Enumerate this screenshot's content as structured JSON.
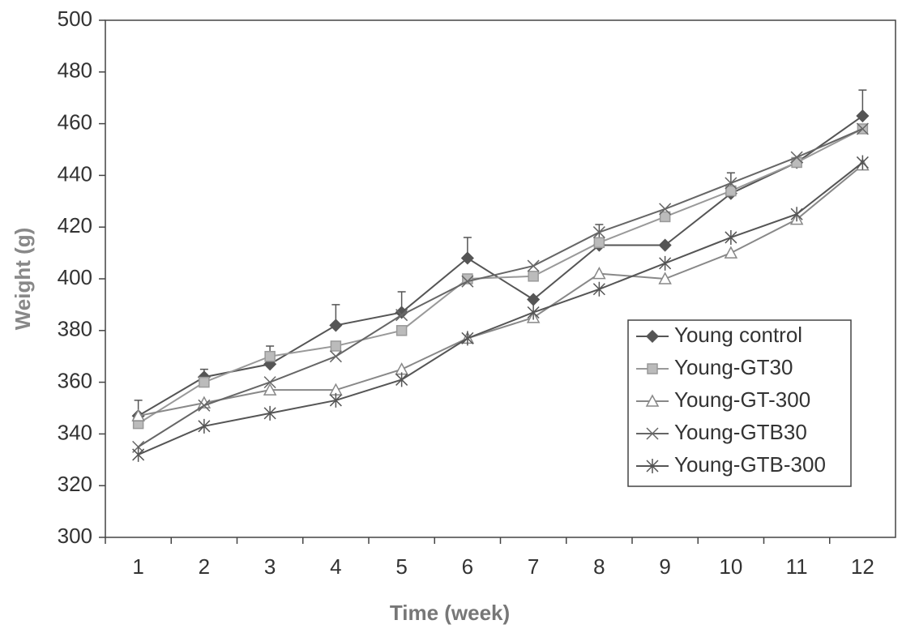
{
  "chart_data": {
    "type": "line",
    "x_label": "Time (week)",
    "y_label": "Weight (g)",
    "categories": [
      "1",
      "2",
      "3",
      "4",
      "5",
      "6",
      "7",
      "8",
      "9",
      "10",
      "11",
      "12"
    ],
    "ylim": [
      300,
      500
    ],
    "yticks": [
      300,
      320,
      340,
      360,
      380,
      400,
      420,
      440,
      460,
      480,
      500
    ],
    "legend": "right",
    "series": [
      {
        "name": "Young control",
        "color": "#555555",
        "marker": "diamond",
        "values": [
          347,
          362,
          367,
          382,
          387,
          408,
          392,
          413,
          413,
          433,
          445,
          463
        ],
        "errors": [
          6,
          3,
          7,
          8,
          8,
          8,
          null,
          8,
          null,
          8,
          null,
          10
        ]
      },
      {
        "name": "Young-GT30",
        "color": "#999999",
        "marker": "square",
        "values": [
          344,
          360,
          370,
          374,
          380,
          400,
          401,
          414,
          424,
          434,
          445,
          458
        ]
      },
      {
        "name": "Young-GT-300",
        "color": "#888888",
        "marker": "triangle",
        "values": [
          347,
          352,
          357,
          357,
          365,
          377,
          385,
          402,
          400,
          410,
          423,
          444
        ]
      },
      {
        "name": "Young-GTB30",
        "color": "#666666",
        "marker": "x",
        "values": [
          335,
          351,
          360,
          370,
          386,
          399,
          405,
          418,
          427,
          437,
          447,
          458
        ]
      },
      {
        "name": "Young-GTB-300",
        "color": "#555555",
        "marker": "star",
        "values": [
          332,
          343,
          348,
          353,
          361,
          377,
          387,
          396,
          406,
          416,
          425,
          445
        ]
      }
    ]
  }
}
